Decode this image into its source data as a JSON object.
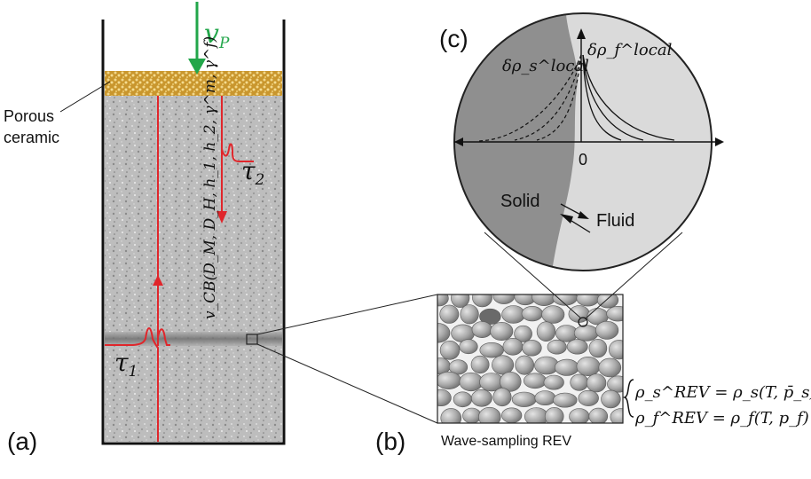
{
  "labels": {
    "panel_a": "(a)",
    "panel_b": "(b)",
    "panel_c": "(c)",
    "porous_line1": "Porous",
    "porous_line2": "ceramic",
    "v_p_main": "v",
    "v_p_sub": "P",
    "tau1_main": "τ",
    "tau1_sub": "1",
    "tau2_main": "τ",
    "tau2_sub": "2",
    "vcb_formula": "v_CB(D_M, D_H, h_1, h_2, γ^m, γ^f)",
    "solid": "Solid",
    "fluid": "Fluid",
    "zero": "0",
    "delta_rho_s": "δρ_s^local",
    "delta_rho_f": "δρ_f^local",
    "rev_caption": "Wave-sampling REV",
    "eq_rho_s": "ρ_s^REV = ρ_s(T, p̄_s)",
    "eq_rho_f": "ρ_f^REV = ρ_f(T, p_f)"
  },
  "colors": {
    "velocity_arrow": "#22a64a",
    "wave_arrow": "#e0262b",
    "ceramic": "#d8b04a",
    "rock": "#b9b9b9",
    "solid_region": "#8f8f8f",
    "fluid_region": "#dadada",
    "grain": "#a8a8a8"
  }
}
